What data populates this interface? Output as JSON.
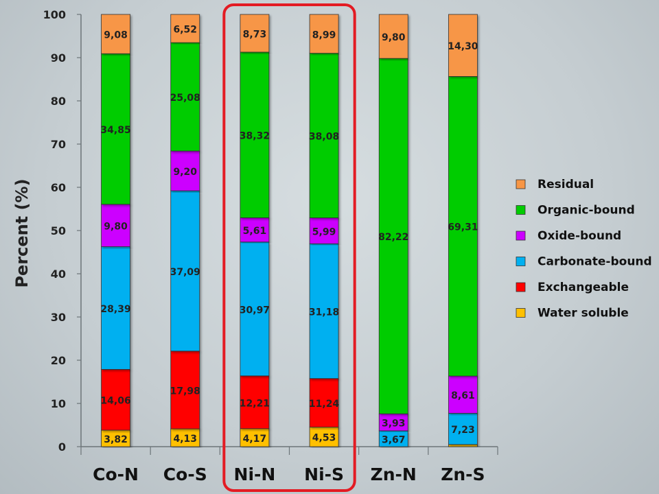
{
  "chart_data": {
    "type": "bar",
    "stacked": true,
    "categories": [
      "Co-N",
      "Co-S",
      "Ni-N",
      "Ni-S",
      "Zn-N",
      "Zn-S"
    ],
    "ylabel": "Percent (%)",
    "ylim": [
      0,
      100
    ],
    "yticks": [
      "0",
      "10",
      "20",
      "30",
      "40",
      "50",
      "60",
      "70",
      "80",
      "90",
      "100"
    ],
    "grid": false,
    "legend_position": "right",
    "highlight": {
      "categories": [
        "Ni-N",
        "Ni-S"
      ],
      "color": "#e31b23"
    },
    "series": [
      {
        "name": "Water soluble",
        "color": "#ffc000",
        "values": [
          3.82,
          4.13,
          4.17,
          4.53,
          0,
          0.5
        ],
        "labels": [
          "3,82",
          "4,13",
          "4,17",
          "4,53",
          "",
          ""
        ]
      },
      {
        "name": "Exchangeable",
        "color": "#ff0000",
        "values": [
          14.06,
          17.98,
          12.21,
          11.24,
          0,
          0
        ],
        "labels": [
          "14,06",
          "17,98",
          "12,21",
          "11,24",
          "",
          ""
        ]
      },
      {
        "name": "Carbonate-bound",
        "color": "#00b0f0",
        "values": [
          28.39,
          37.09,
          30.97,
          31.18,
          3.67,
          7.23
        ],
        "labels": [
          "28,39",
          "37,09",
          "30,97",
          "31,18",
          "3,67",
          "7,23"
        ]
      },
      {
        "name": "Oxide-bound",
        "color": "#cc00ff",
        "values": [
          9.8,
          9.2,
          5.61,
          5.99,
          3.93,
          8.61
        ],
        "labels": [
          "9,80",
          "9,20",
          "5,61",
          "5,99",
          "3,93",
          "8,61"
        ]
      },
      {
        "name": "Organic-bound",
        "color": "#00cc00",
        "values": [
          34.85,
          25.08,
          38.32,
          38.08,
          82.22,
          69.31
        ],
        "labels": [
          "34,85",
          "25,08",
          "38,32",
          "38,08",
          "82,22",
          "69,31"
        ]
      },
      {
        "name": "Residual",
        "color": "#f79646",
        "values": [
          9.08,
          6.52,
          8.73,
          8.99,
          9.8,
          14.3
        ],
        "labels": [
          "9,08",
          "6,52",
          "8,73",
          "8,99",
          "9,80",
          "14,30"
        ]
      }
    ]
  }
}
